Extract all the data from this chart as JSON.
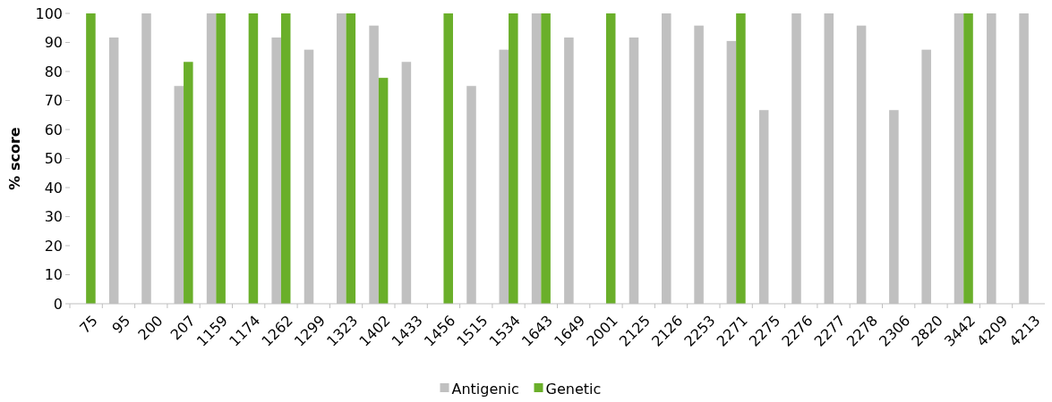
{
  "chart_data": {
    "type": "bar",
    "ylabel": "% score",
    "categories": [
      "75",
      "95",
      "200",
      "207",
      "1159",
      "1174",
      "1262",
      "1299",
      "1323",
      "1402",
      "1433",
      "1456",
      "1515",
      "1534",
      "1643",
      "1649",
      "2001",
      "2125",
      "2126",
      "2253",
      "2271",
      "2275",
      "2276",
      "2277",
      "2278",
      "2306",
      "2820",
      "3442",
      "4209",
      "4213"
    ],
    "series": [
      {
        "name": "Antigenic",
        "color": "#c0c0c0",
        "values": [
          null,
          91.7,
          100,
          75,
          100,
          null,
          91.7,
          87.5,
          100,
          95.8,
          83.3,
          null,
          75,
          87.5,
          100,
          91.7,
          null,
          91.7,
          100,
          95.8,
          90.5,
          66.7,
          100,
          100,
          95.8,
          66.7,
          87.5,
          100,
          100,
          100
        ]
      },
      {
        "name": "Genetic",
        "color": "#6aaf2a",
        "values": [
          100,
          null,
          null,
          83.3,
          100,
          100,
          100,
          null,
          100,
          77.8,
          null,
          100,
          null,
          100,
          100,
          null,
          100,
          null,
          null,
          null,
          100,
          null,
          null,
          null,
          null,
          null,
          null,
          100,
          null,
          null
        ]
      }
    ],
    "ylim": [
      0,
      100
    ],
    "yticks": [
      0,
      10,
      20,
      30,
      40,
      50,
      60,
      70,
      80,
      90,
      100
    ],
    "grid": false,
    "legend": "bottom"
  }
}
